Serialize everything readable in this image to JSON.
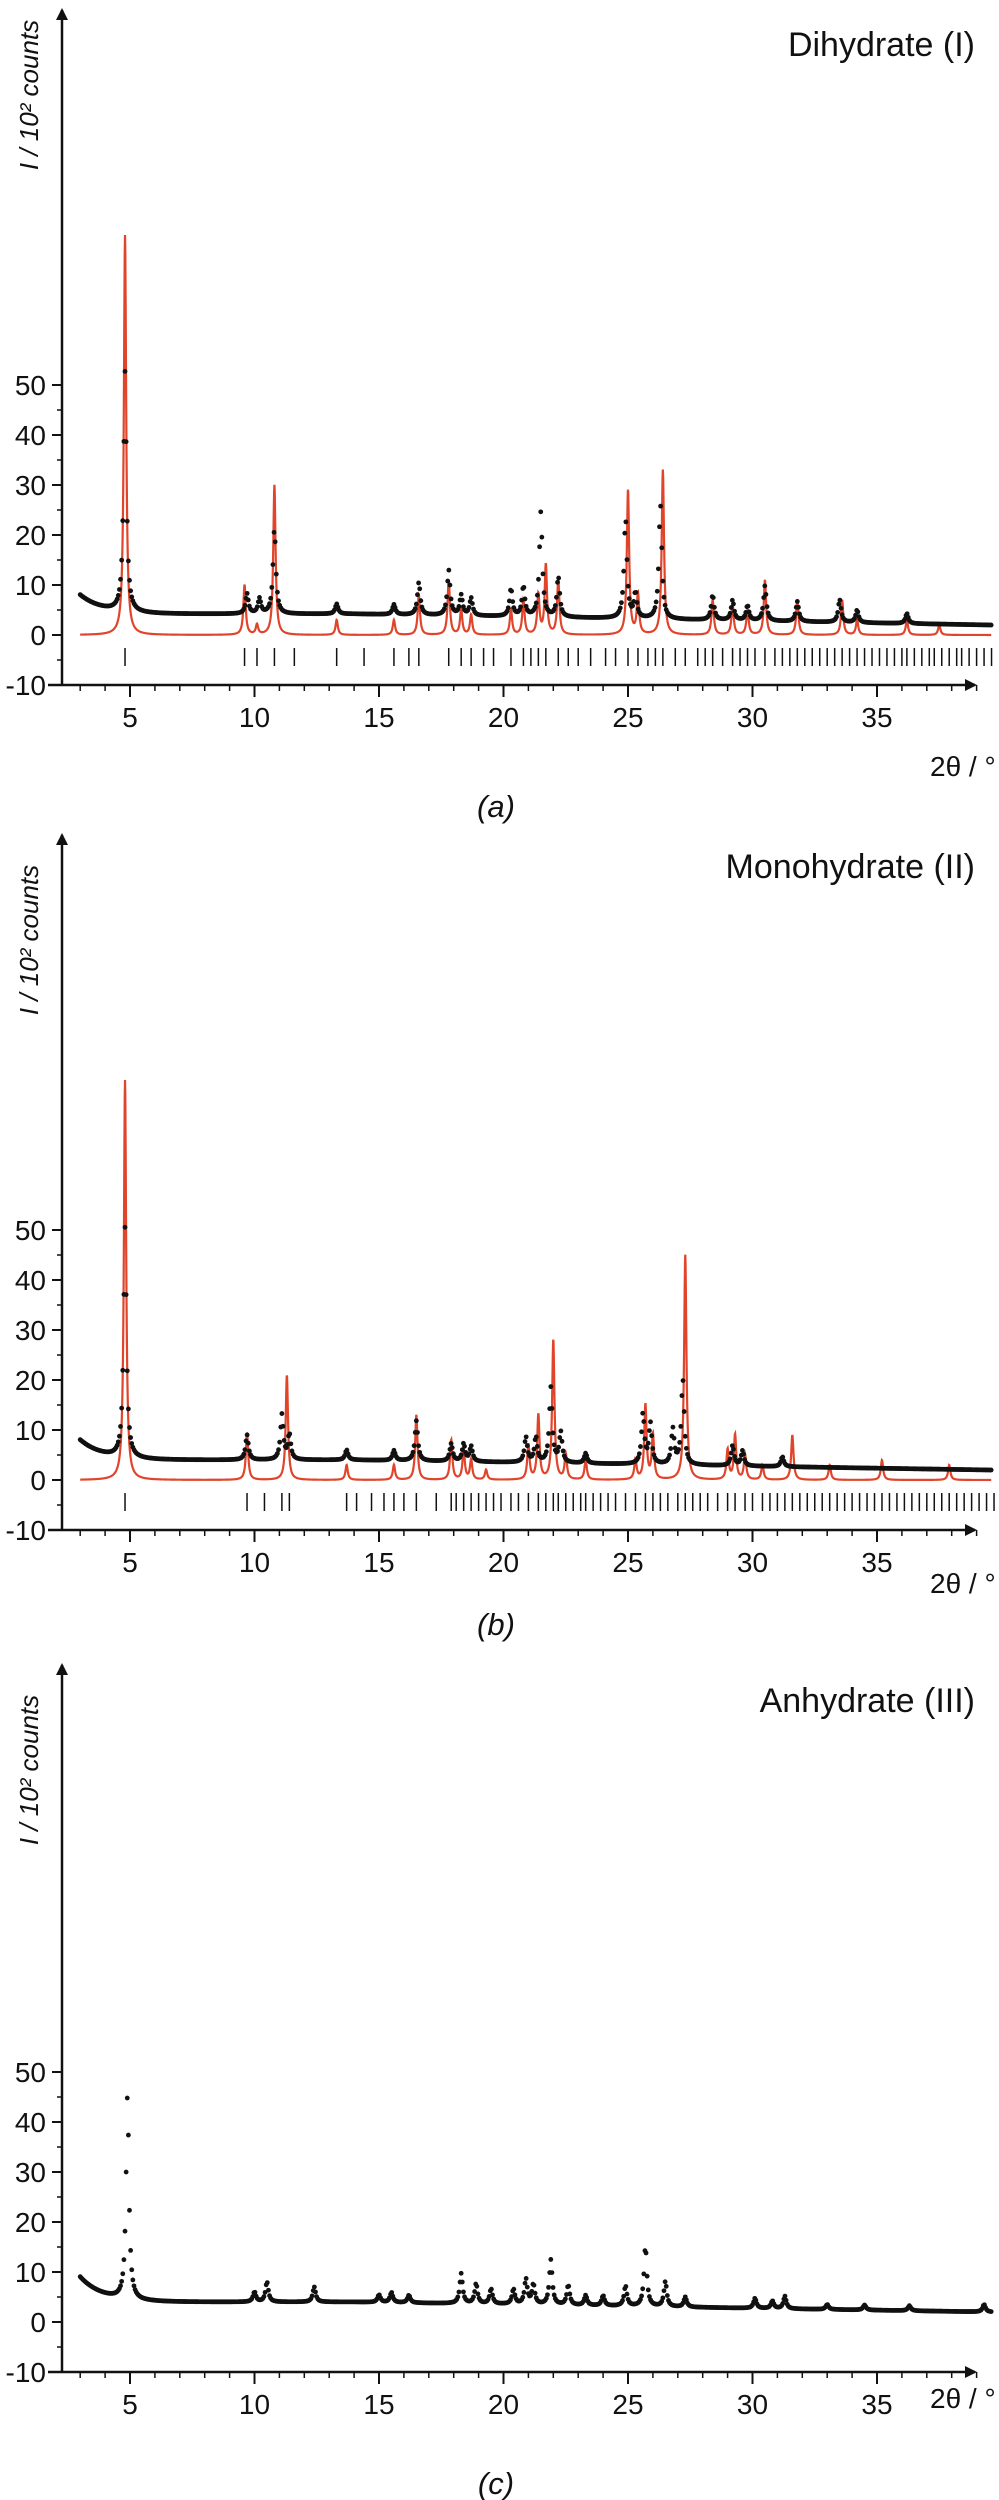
{
  "figure": {
    "panels": [
      {
        "title": "Dihydrate (I)",
        "label": "(a)",
        "ylabel": "I / 10² counts",
        "xlabel": "2θ / °"
      },
      {
        "title": "Monohydrate (II)",
        "label": "(b)",
        "ylabel": "I / 10² counts",
        "xlabel": "2θ / °"
      },
      {
        "title": "Anhydrate (III)",
        "label": "(c)",
        "ylabel": "I / 10² counts",
        "xlabel": "2θ / °"
      }
    ]
  },
  "colors": {
    "observed": "#111111",
    "calculated": "#e0442a",
    "axis": "#111111"
  },
  "chart_data": [
    {
      "type": "line",
      "title": "Dihydrate (I)",
      "xlabel": "2θ / °",
      "ylabel": "I / 10² counts",
      "xlim": [
        2.5,
        40
      ],
      "ylim": [
        -10,
        80
      ],
      "xticks": [
        5,
        10,
        15,
        20,
        25,
        30,
        35
      ],
      "yticks": [
        -10,
        0,
        10,
        20,
        30,
        40,
        50
      ],
      "background": {
        "start": 3.0,
        "left": 8,
        "mid": 4.2,
        "end": 2.0
      },
      "observed_peaks": [
        {
          "x": 4.8,
          "h": 48
        },
        {
          "x": 9.7,
          "h": 4
        },
        {
          "x": 10.2,
          "h": 3
        },
        {
          "x": 10.8,
          "h": 17
        },
        {
          "x": 13.3,
          "h": 2
        },
        {
          "x": 15.6,
          "h": 2
        },
        {
          "x": 16.6,
          "h": 6.5
        },
        {
          "x": 17.8,
          "h": 9
        },
        {
          "x": 18.3,
          "h": 4
        },
        {
          "x": 18.7,
          "h": 3.5
        },
        {
          "x": 20.3,
          "h": 5.5
        },
        {
          "x": 20.8,
          "h": 6
        },
        {
          "x": 21.5,
          "h": 21
        },
        {
          "x": 22.2,
          "h": 8
        },
        {
          "x": 24.9,
          "h": 20
        },
        {
          "x": 25.3,
          "h": 5
        },
        {
          "x": 26.3,
          "h": 23
        },
        {
          "x": 28.4,
          "h": 5
        },
        {
          "x": 29.2,
          "h": 4
        },
        {
          "x": 29.8,
          "h": 3
        },
        {
          "x": 30.5,
          "h": 7
        },
        {
          "x": 31.8,
          "h": 4
        },
        {
          "x": 33.5,
          "h": 4.5
        },
        {
          "x": 34.2,
          "h": 2.5
        },
        {
          "x": 36.2,
          "h": 2
        }
      ],
      "calculated_peaks": [
        {
          "x": 4.8,
          "h": 80
        },
        {
          "x": 9.6,
          "h": 10
        },
        {
          "x": 10.1,
          "h": 2
        },
        {
          "x": 10.8,
          "h": 30
        },
        {
          "x": 13.3,
          "h": 3
        },
        {
          "x": 15.6,
          "h": 3
        },
        {
          "x": 16.6,
          "h": 8
        },
        {
          "x": 17.8,
          "h": 11
        },
        {
          "x": 18.3,
          "h": 5
        },
        {
          "x": 18.7,
          "h": 4
        },
        {
          "x": 20.3,
          "h": 5
        },
        {
          "x": 20.8,
          "h": 7
        },
        {
          "x": 21.4,
          "h": 8
        },
        {
          "x": 21.7,
          "h": 14
        },
        {
          "x": 22.2,
          "h": 11
        },
        {
          "x": 25.0,
          "h": 29
        },
        {
          "x": 25.4,
          "h": 8
        },
        {
          "x": 26.4,
          "h": 33
        },
        {
          "x": 28.4,
          "h": 7
        },
        {
          "x": 29.2,
          "h": 6
        },
        {
          "x": 29.8,
          "h": 5
        },
        {
          "x": 30.5,
          "h": 11
        },
        {
          "x": 31.8,
          "h": 7
        },
        {
          "x": 33.6,
          "h": 7
        },
        {
          "x": 34.2,
          "h": 3
        },
        {
          "x": 36.2,
          "h": 3
        },
        {
          "x": 37.5,
          "h": 2
        }
      ],
      "reflection_ticks": [
        4.8,
        9.6,
        10.1,
        10.8,
        11.6,
        13.3,
        14.4,
        15.6,
        16.2,
        16.6,
        17.8,
        18.3,
        18.7,
        19.2,
        19.6,
        20.3,
        20.8,
        21.1,
        21.4,
        21.7,
        22.2,
        22.6,
        23.0,
        23.5,
        24.1,
        24.5,
        25.0,
        25.4,
        25.8,
        26.1,
        26.4,
        26.9,
        27.3,
        27.8,
        28.1,
        28.4,
        28.8,
        29.2,
        29.5,
        29.8,
        30.1,
        30.5,
        30.9,
        31.2,
        31.5,
        31.8,
        32.1,
        32.4,
        32.7,
        33.0,
        33.3,
        33.6,
        33.9,
        34.2,
        34.5,
        34.8,
        35.1,
        35.4,
        35.7,
        36.0,
        36.2,
        36.5,
        36.8,
        37.1,
        37.3,
        37.6,
        37.9,
        38.2,
        38.4,
        38.7,
        39.0,
        39.3,
        39.6
      ]
    },
    {
      "type": "line",
      "title": "Monohydrate (II)",
      "xlabel": "2θ / °",
      "ylabel": "I / 10² counts",
      "xlim": [
        2.5,
        40
      ],
      "ylim": [
        -10,
        80
      ],
      "xticks": [
        5,
        10,
        15,
        20,
        25,
        30,
        35
      ],
      "yticks": [
        -10,
        0,
        10,
        20,
        30,
        40,
        50
      ],
      "background": {
        "start": 3.0,
        "left": 8,
        "mid": 4.0,
        "end": 2.0
      },
      "observed_peaks": [
        {
          "x": 4.8,
          "h": 46
        },
        {
          "x": 9.7,
          "h": 5
        },
        {
          "x": 11.1,
          "h": 9
        },
        {
          "x": 11.4,
          "h": 5
        },
        {
          "x": 13.7,
          "h": 2
        },
        {
          "x": 15.6,
          "h": 2
        },
        {
          "x": 16.5,
          "h": 8
        },
        {
          "x": 17.9,
          "h": 3.5
        },
        {
          "x": 18.4,
          "h": 3.5
        },
        {
          "x": 18.7,
          "h": 3
        },
        {
          "x": 20.9,
          "h": 5
        },
        {
          "x": 21.3,
          "h": 5
        },
        {
          "x": 21.9,
          "h": 15
        },
        {
          "x": 22.3,
          "h": 6
        },
        {
          "x": 23.3,
          "h": 2
        },
        {
          "x": 25.6,
          "h": 10
        },
        {
          "x": 25.9,
          "h": 8
        },
        {
          "x": 26.8,
          "h": 7
        },
        {
          "x": 27.2,
          "h": 17
        },
        {
          "x": 29.2,
          "h": 4
        },
        {
          "x": 29.6,
          "h": 3
        },
        {
          "x": 31.2,
          "h": 2
        }
      ],
      "calculated_peaks": [
        {
          "x": 4.8,
          "h": 80
        },
        {
          "x": 9.7,
          "h": 9.5
        },
        {
          "x": 11.3,
          "h": 21
        },
        {
          "x": 13.7,
          "h": 3
        },
        {
          "x": 15.6,
          "h": 3
        },
        {
          "x": 16.5,
          "h": 13
        },
        {
          "x": 17.9,
          "h": 8
        },
        {
          "x": 18.4,
          "h": 6
        },
        {
          "x": 18.7,
          "h": 4
        },
        {
          "x": 19.3,
          "h": 2
        },
        {
          "x": 21.0,
          "h": 7
        },
        {
          "x": 21.4,
          "h": 13
        },
        {
          "x": 22.0,
          "h": 28
        },
        {
          "x": 22.5,
          "h": 5
        },
        {
          "x": 23.3,
          "h": 4
        },
        {
          "x": 25.3,
          "h": 4
        },
        {
          "x": 25.7,
          "h": 15
        },
        {
          "x": 26.0,
          "h": 9
        },
        {
          "x": 27.3,
          "h": 45
        },
        {
          "x": 29.0,
          "h": 6
        },
        {
          "x": 29.3,
          "h": 9
        },
        {
          "x": 29.7,
          "h": 5
        },
        {
          "x": 30.4,
          "h": 3
        },
        {
          "x": 31.6,
          "h": 9
        },
        {
          "x": 33.1,
          "h": 3
        },
        {
          "x": 35.2,
          "h": 4
        },
        {
          "x": 37.9,
          "h": 3
        }
      ],
      "reflection_ticks": [
        4.8,
        9.7,
        10.4,
        11.1,
        11.4,
        13.7,
        14.1,
        14.7,
        15.2,
        15.6,
        16.0,
        16.5,
        17.3,
        17.9,
        18.1,
        18.4,
        18.7,
        19.0,
        19.3,
        19.6,
        19.9,
        20.3,
        20.6,
        21.0,
        21.4,
        21.7,
        22.0,
        22.2,
        22.5,
        22.8,
        23.1,
        23.3,
        23.6,
        23.9,
        24.2,
        24.5,
        24.9,
        25.3,
        25.7,
        26.0,
        26.3,
        26.6,
        27.0,
        27.3,
        27.6,
        27.9,
        28.2,
        28.6,
        29.0,
        29.3,
        29.7,
        30.0,
        30.4,
        30.7,
        31.0,
        31.3,
        31.6,
        31.9,
        32.2,
        32.5,
        32.8,
        33.1,
        33.4,
        33.7,
        34.0,
        34.3,
        34.6,
        34.9,
        35.2,
        35.5,
        35.8,
        36.1,
        36.4,
        36.7,
        37.0,
        37.3,
        37.6,
        37.9,
        38.2,
        38.5,
        38.8,
        39.1,
        39.4,
        39.7
      ]
    },
    {
      "type": "scatter",
      "title": "Anhydrate (III)",
      "xlabel": "2θ / °",
      "ylabel": "I / 10² counts",
      "xlim": [
        2.5,
        40
      ],
      "ylim": [
        -10,
        80
      ],
      "xticks": [
        5,
        10,
        15,
        20,
        25,
        30,
        35
      ],
      "yticks": [
        -10,
        0,
        10,
        20,
        30,
        40,
        50
      ],
      "background": {
        "start": 3.0,
        "left": 9,
        "mid": 4.0,
        "end": 2.0
      },
      "observed_peaks": [
        {
          "x": 4.9,
          "h": 41
        },
        {
          "x": 10.0,
          "h": 2
        },
        {
          "x": 10.5,
          "h": 4
        },
        {
          "x": 12.4,
          "h": 3
        },
        {
          "x": 15.0,
          "h": 1.5
        },
        {
          "x": 15.5,
          "h": 2
        },
        {
          "x": 16.2,
          "h": 1.5
        },
        {
          "x": 18.3,
          "h": 6
        },
        {
          "x": 18.9,
          "h": 4
        },
        {
          "x": 19.5,
          "h": 3
        },
        {
          "x": 20.4,
          "h": 3
        },
        {
          "x": 20.9,
          "h": 5
        },
        {
          "x": 21.2,
          "h": 4
        },
        {
          "x": 21.9,
          "h": 9
        },
        {
          "x": 22.6,
          "h": 4
        },
        {
          "x": 23.3,
          "h": 2
        },
        {
          "x": 24.0,
          "h": 2
        },
        {
          "x": 24.9,
          "h": 4
        },
        {
          "x": 25.7,
          "h": 12
        },
        {
          "x": 26.5,
          "h": 5
        },
        {
          "x": 27.3,
          "h": 2
        },
        {
          "x": 30.1,
          "h": 2
        },
        {
          "x": 30.8,
          "h": 1.5
        },
        {
          "x": 31.3,
          "h": 2.5
        },
        {
          "x": 33.0,
          "h": 1
        },
        {
          "x": 34.5,
          "h": 1
        },
        {
          "x": 36.3,
          "h": 1
        },
        {
          "x": 39.3,
          "h": 1.5
        }
      ],
      "calculated_peaks": [],
      "reflection_ticks": []
    }
  ]
}
